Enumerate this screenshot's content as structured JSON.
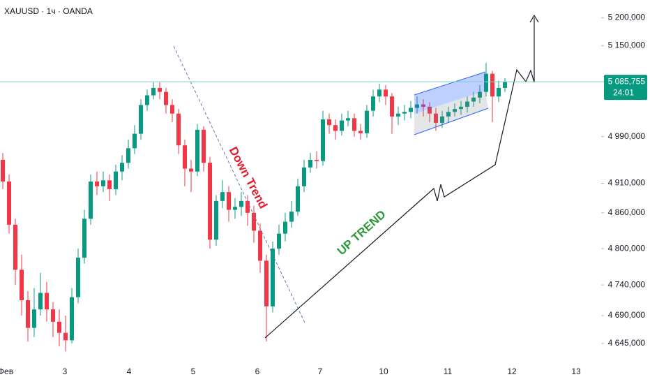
{
  "chart_data": {
    "type": "candlestick",
    "title": "XAUUSD · 1ч · OANDA",
    "log_scale": true,
    "colors": {
      "up": "#089981",
      "down": "#f23645"
    },
    "x_labels": [
      "Фев",
      "3",
      "4",
      "5",
      "6",
      "7",
      "10",
      "11",
      "12",
      "13"
    ],
    "open": [
      4950,
      4913,
      4840,
      4765,
      4715,
      4670,
      4700,
      4727,
      4700,
      4680,
      4662,
      4650,
      4720,
      4785,
      4850,
      4913,
      4905,
      4915,
      4900,
      4930,
      4945,
      4970,
      4995,
      5045,
      5062,
      5075,
      5068,
      5045,
      5030,
      4975,
      4935,
      4930,
      5002,
      4945,
      4815,
      4880,
      4895,
      4865,
      4870,
      4880,
      4860,
      4830,
      4780,
      4705,
      4800,
      4825,
      4845,
      4862,
      4905,
      4937,
      4950,
      4948,
      5020,
      5010,
      5000,
      5018,
      5022,
      5000,
      4996,
      5035,
      5060,
      5072,
      5060,
      5025,
      5030,
      5033,
      5040,
      5046,
      5042,
      5030,
      5014,
      5025,
      5033,
      5038,
      5042,
      5051,
      5058,
      5068,
      5100,
      5060,
      5075
    ],
    "high": [
      4962,
      4925,
      4850,
      4790,
      4730,
      4735,
      4760,
      4745,
      4712,
      4700,
      4690,
      4735,
      4800,
      4865,
      4925,
      4930,
      4930,
      4925,
      4942,
      4958,
      4985,
      5010,
      5055,
      5072,
      5085,
      5085,
      5075,
      5055,
      5038,
      4985,
      4950,
      5012,
      5008,
      4955,
      4890,
      4915,
      4905,
      4885,
      4895,
      4890,
      4872,
      4842,
      4790,
      4812,
      4840,
      4860,
      4880,
      4918,
      4950,
      4962,
      4965,
      5035,
      5030,
      5020,
      5030,
      5035,
      5030,
      5012,
      5045,
      5072,
      5082,
      5080,
      5066,
      5042,
      5045,
      5052,
      5060,
      5055,
      5050,
      5040,
      5035,
      5042,
      5048,
      5052,
      5060,
      5068,
      5080,
      5119,
      5105,
      5088,
      5092
    ],
    "low": [
      4900,
      4825,
      4740,
      4690,
      4648,
      4655,
      4690,
      4680,
      4655,
      4640,
      4632,
      4645,
      4710,
      4775,
      4840,
      4890,
      4895,
      4880,
      4890,
      4915,
      4935,
      4960,
      4985,
      5035,
      5055,
      5055,
      5030,
      5015,
      4960,
      4905,
      4895,
      4922,
      4930,
      4800,
      4805,
      4868,
      4845,
      4850,
      4855,
      4838,
      4810,
      4760,
      4648,
      4695,
      4790,
      4812,
      4835,
      4855,
      4895,
      4928,
      4935,
      4940,
      4995,
      4985,
      4992,
      5008,
      4990,
      4985,
      4988,
      5025,
      5050,
      5045,
      4995,
      5010,
      5018,
      5022,
      5030,
      5025,
      5015,
      5000,
      5005,
      5015,
      5025,
      5028,
      5032,
      5042,
      5048,
      5060,
      5015,
      5050,
      5068
    ],
    "close": [
      4913,
      4840,
      4765,
      4715,
      4670,
      4700,
      4727,
      4700,
      4680,
      4662,
      4650,
      4720,
      4785,
      4850,
      4913,
      4905,
      4915,
      4900,
      4930,
      4945,
      4970,
      4995,
      5045,
      5062,
      5075,
      5068,
      5045,
      5030,
      4975,
      4935,
      4930,
      5002,
      4945,
      4815,
      4880,
      4895,
      4865,
      4870,
      4880,
      4860,
      4830,
      4780,
      4705,
      4800,
      4825,
      4845,
      4862,
      4905,
      4937,
      4950,
      4948,
      5020,
      5010,
      5000,
      5018,
      5022,
      5000,
      4996,
      5035,
      5060,
      5072,
      5060,
      5025,
      5030,
      5033,
      5040,
      5046,
      5042,
      5030,
      5014,
      5025,
      5033,
      5038,
      5042,
      5051,
      5058,
      5068,
      5100,
      5060,
      5075,
      5086
    ],
    "ylim": [
      4619,
      5232
    ],
    "yticks": [
      {
        "value": 4645,
        "label": "4 645,000"
      },
      {
        "value": 4690,
        "label": "4 690,000"
      },
      {
        "value": 4740,
        "label": "4 740,000"
      },
      {
        "value": 4800,
        "label": "4 800,000"
      },
      {
        "value": 4860,
        "label": "4 860,000"
      },
      {
        "value": 4910,
        "label": "4 910,000"
      },
      {
        "value": 4990,
        "label": "4 990,000"
      },
      {
        "value": 5150,
        "label": "5 150,000"
      },
      {
        "value": 5200,
        "label": "5 200,000"
      }
    ],
    "last_price": {
      "value": 5085.755,
      "label": "5 085,755",
      "countdown": "24:01"
    },
    "annotations": [
      "Down Trend",
      "UP TREND"
    ]
  }
}
